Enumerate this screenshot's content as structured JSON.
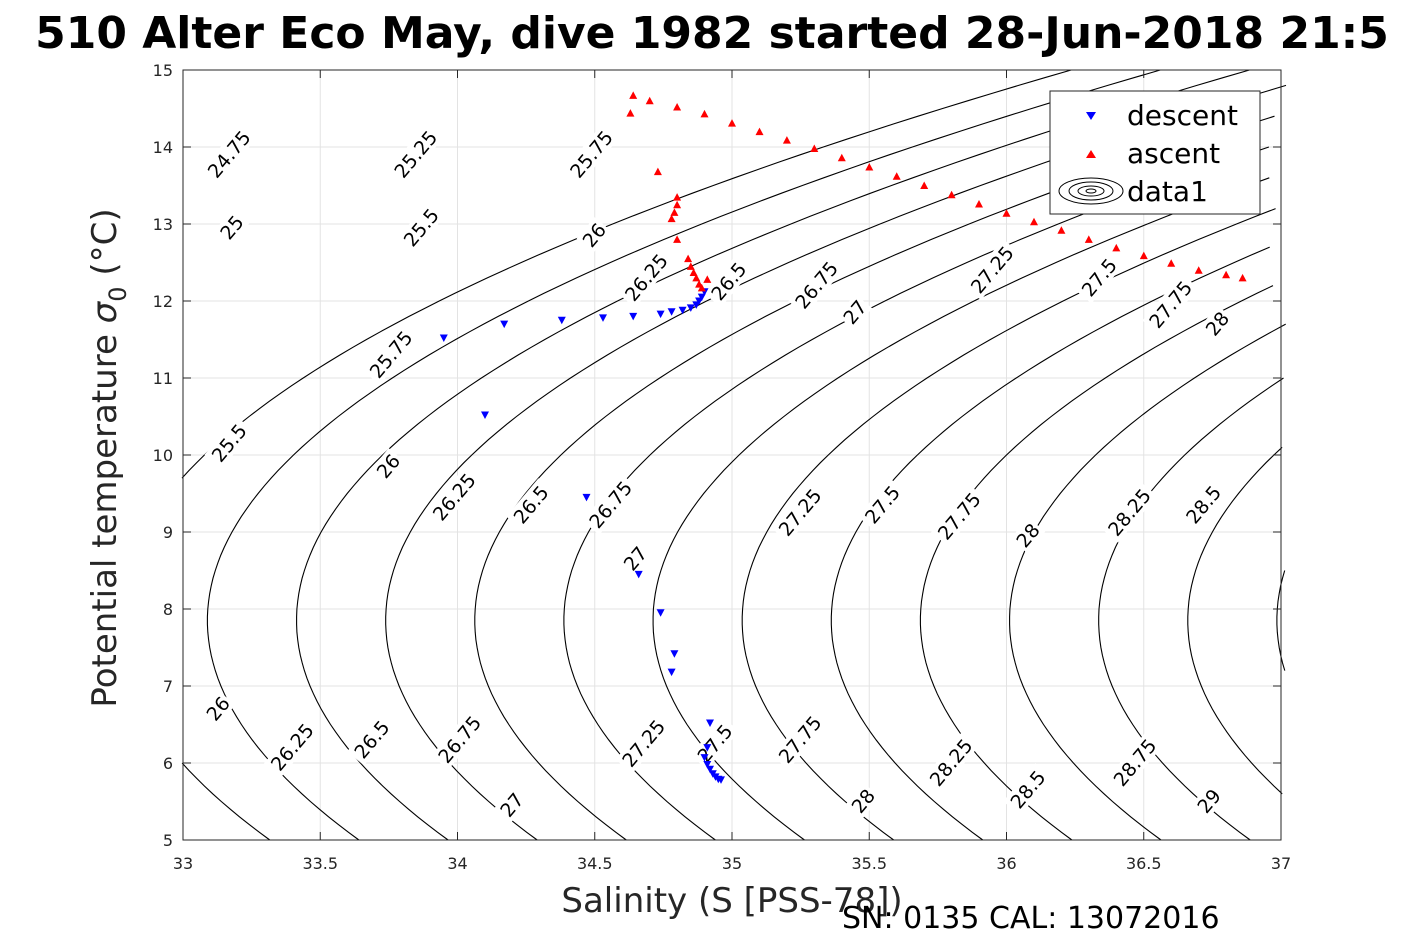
{
  "chart_data": {
    "type": "scatter",
    "title": "510 Alter Eco May, dive 1982 started 28-Jun-2018 21:5",
    "xlabel": "Salinity (S [PSS-78])",
    "ylabel_main": "Potential temperature ",
    "ylabel_sigma": "σ",
    "ylabel_sub": "0",
    "ylabel_unit": " (°C)",
    "footer": "SN: 0135  CAL: 13072016",
    "xlim": [
      33,
      37
    ],
    "ylim": [
      5,
      15
    ],
    "x_ticks": [
      33,
      33.5,
      34,
      34.5,
      35,
      35.5,
      36,
      36.5,
      37
    ],
    "x_tick_labels": [
      "33",
      "33.5",
      "34",
      "34.5",
      "35",
      "35.5",
      "36",
      "36.5",
      "37"
    ],
    "y_ticks": [
      5,
      6,
      7,
      8,
      9,
      10,
      11,
      12,
      13,
      14,
      15
    ],
    "y_tick_labels": [
      "5",
      "6",
      "7",
      "8",
      "9",
      "10",
      "11",
      "12",
      "13",
      "14",
      "15"
    ],
    "grid": true,
    "legend_position": "top-right",
    "legend": [
      {
        "label": "descent",
        "marker": "triangle-down",
        "color": "#0000ff"
      },
      {
        "label": "ascent",
        "marker": "triangle-up",
        "color": "#ff0000"
      },
      {
        "label": "data1",
        "marker": "contour",
        "color": "#000000"
      }
    ],
    "contour_levels": [
      24.75,
      25,
      25.25,
      25.5,
      25.75,
      26,
      26.25,
      26.5,
      26.75,
      27,
      27.25,
      27.5,
      27.75,
      28,
      28.25,
      28.5,
      28.75,
      29
    ],
    "contour_labels": [
      {
        "text": "24.75",
        "s": 33.17,
        "t": 13.9
      },
      {
        "text": "25.25",
        "s": 33.85,
        "t": 13.9
      },
      {
        "text": "25.75",
        "s": 34.49,
        "t": 13.9
      },
      {
        "text": "25",
        "s": 33.18,
        "t": 12.95
      },
      {
        "text": "25.5",
        "s": 33.87,
        "t": 12.95
      },
      {
        "text": "26",
        "s": 34.5,
        "t": 12.85
      },
      {
        "text": "26.25",
        "s": 34.69,
        "t": 12.3
      },
      {
        "text": "26.5",
        "s": 34.99,
        "t": 12.25
      },
      {
        "text": "26.75",
        "s": 35.31,
        "t": 12.2
      },
      {
        "text": "25.75",
        "s": 33.76,
        "t": 11.3
      },
      {
        "text": "27",
        "s": 35.45,
        "t": 11.85
      },
      {
        "text": "27.25",
        "s": 35.95,
        "t": 12.4
      },
      {
        "text": "27.5",
        "s": 36.34,
        "t": 12.3
      },
      {
        "text": "27.75",
        "s": 36.6,
        "t": 11.95
      },
      {
        "text": "28",
        "s": 36.77,
        "t": 11.7
      },
      {
        "text": "25.5",
        "s": 33.17,
        "t": 10.15
      },
      {
        "text": "26",
        "s": 33.75,
        "t": 9.85
      },
      {
        "text": "26.25",
        "s": 33.99,
        "t": 9.45
      },
      {
        "text": "26.5",
        "s": 34.27,
        "t": 9.35
      },
      {
        "text": "26.75",
        "s": 34.56,
        "t": 9.35
      },
      {
        "text": "27.25",
        "s": 35.25,
        "t": 9.25
      },
      {
        "text": "27.5",
        "s": 35.55,
        "t": 9.35
      },
      {
        "text": "27.75",
        "s": 35.83,
        "t": 9.2
      },
      {
        "text": "28",
        "s": 36.08,
        "t": 8.95
      },
      {
        "text": "28.25",
        "s": 36.45,
        "t": 9.25
      },
      {
        "text": "28.5",
        "s": 36.72,
        "t": 9.35
      },
      {
        "text": "27",
        "s": 34.65,
        "t": 8.65
      },
      {
        "text": "26",
        "s": 33.13,
        "t": 6.7
      },
      {
        "text": "26.25",
        "s": 33.4,
        "t": 6.2
      },
      {
        "text": "26.5",
        "s": 33.69,
        "t": 6.3
      },
      {
        "text": "26.75",
        "s": 34.01,
        "t": 6.3
      },
      {
        "text": "27.25",
        "s": 34.68,
        "t": 6.25
      },
      {
        "text": "27.5",
        "s": 34.94,
        "t": 6.25
      },
      {
        "text": "27.75",
        "s": 35.25,
        "t": 6.3
      },
      {
        "text": "28",
        "s": 35.48,
        "t": 5.5
      },
      {
        "text": "28.25",
        "s": 35.8,
        "t": 6.0
      },
      {
        "text": "28.5",
        "s": 36.08,
        "t": 5.65
      },
      {
        "text": "28.75",
        "s": 36.47,
        "t": 6.0
      },
      {
        "text": "29",
        "s": 36.74,
        "t": 5.5
      },
      {
        "text": "27",
        "s": 34.2,
        "t": 5.45
      }
    ],
    "series": [
      {
        "name": "descent",
        "marker": "triangle-down",
        "color": "#0000ff",
        "points": [
          [
            33.95,
            11.52
          ],
          [
            34.1,
            10.52
          ],
          [
            34.17,
            11.7
          ],
          [
            34.38,
            11.75
          ],
          [
            34.53,
            11.78
          ],
          [
            34.64,
            11.8
          ],
          [
            34.74,
            11.83
          ],
          [
            34.78,
            11.86
          ],
          [
            34.82,
            11.88
          ],
          [
            34.85,
            11.91
          ],
          [
            34.87,
            11.95
          ],
          [
            34.88,
            12.0
          ],
          [
            34.89,
            12.05
          ],
          [
            34.9,
            12.12
          ],
          [
            34.47,
            9.45
          ],
          [
            34.66,
            8.45
          ],
          [
            34.74,
            7.95
          ],
          [
            34.79,
            7.42
          ],
          [
            34.78,
            7.18
          ],
          [
            34.92,
            6.52
          ],
          [
            34.91,
            6.2
          ],
          [
            34.9,
            6.07
          ],
          [
            34.91,
            5.98
          ],
          [
            34.92,
            5.92
          ],
          [
            34.93,
            5.86
          ],
          [
            34.94,
            5.82
          ],
          [
            34.95,
            5.79
          ],
          [
            34.96,
            5.78
          ]
        ]
      },
      {
        "name": "ascent",
        "marker": "triangle-up",
        "color": "#ff0000",
        "points": [
          [
            34.63,
            14.44
          ],
          [
            34.73,
            13.68
          ],
          [
            34.8,
            13.35
          ],
          [
            34.8,
            13.25
          ],
          [
            34.79,
            13.15
          ],
          [
            34.78,
            13.07
          ],
          [
            34.8,
            12.8
          ],
          [
            34.84,
            12.55
          ],
          [
            34.85,
            12.45
          ],
          [
            34.86,
            12.37
          ],
          [
            34.87,
            12.3
          ],
          [
            34.88,
            12.22
          ],
          [
            34.89,
            12.17
          ],
          [
            34.91,
            12.28
          ],
          [
            34.64,
            14.67
          ],
          [
            34.7,
            14.6
          ],
          [
            34.8,
            14.52
          ],
          [
            34.9,
            14.43
          ],
          [
            35.0,
            14.31
          ],
          [
            35.1,
            14.2
          ],
          [
            35.2,
            14.09
          ],
          [
            35.3,
            13.98
          ],
          [
            35.4,
            13.86
          ],
          [
            35.5,
            13.74
          ],
          [
            35.6,
            13.62
          ],
          [
            35.7,
            13.5
          ],
          [
            35.8,
            13.38
          ],
          [
            35.9,
            13.26
          ],
          [
            36.0,
            13.14
          ],
          [
            36.1,
            13.03
          ],
          [
            36.2,
            12.92
          ],
          [
            36.3,
            12.8
          ],
          [
            36.4,
            12.69
          ],
          [
            36.5,
            12.59
          ],
          [
            36.6,
            12.49
          ],
          [
            36.7,
            12.4
          ],
          [
            36.8,
            12.34
          ],
          [
            36.86,
            12.3
          ]
        ]
      }
    ]
  }
}
